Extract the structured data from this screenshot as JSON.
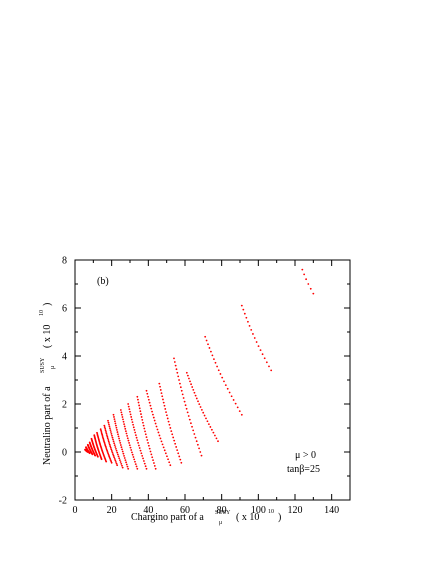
{
  "chart_data": {
    "type": "scatter",
    "panel_label": "(b)",
    "annotations": [
      "μ > 0",
      "tanβ=25"
    ],
    "xlabel": {
      "main": "Chargino part of a",
      "sub": "μ",
      "sup": "SUSY",
      "unit": "( x 10",
      "unit_exp": "10",
      "unit_close": ")"
    },
    "ylabel": {
      "main": "Neutralino part of a",
      "sub": "μ",
      "sup": "SUSY",
      "unit": "( x 10",
      "unit_exp": "10",
      "unit_close": ")"
    },
    "xlim": [
      0,
      150
    ],
    "ylim": [
      -2,
      8
    ],
    "xticks": [
      "0",
      "20",
      "40",
      "60",
      "80",
      "100",
      "120",
      "140"
    ],
    "yticks": [
      "-2",
      "0",
      "2",
      "4",
      "6",
      "8"
    ],
    "color": "#ff0000",
    "grid": false,
    "series": [
      {
        "top": [
          124,
          7.6
        ],
        "bottom": [
          130,
          6.6
        ],
        "n": 6
      },
      {
        "top": [
          91,
          6.1
        ],
        "bottom": [
          107,
          3.4
        ],
        "n": 17
      },
      {
        "top": [
          71,
          4.8
        ],
        "bottom": [
          91,
          1.55
        ],
        "n": 22
      },
      {
        "top": [
          61,
          3.3
        ],
        "bottom": [
          78,
          0.45
        ],
        "n": 25
      },
      {
        "top": [
          54,
          3.9
        ],
        "bottom": [
          69,
          -0.15
        ],
        "n": 28
      },
      {
        "top": [
          46,
          2.85
        ],
        "bottom": [
          58,
          -0.45
        ],
        "n": 26
      },
      {
        "top": [
          39,
          2.55
        ],
        "bottom": [
          52,
          -0.55
        ],
        "n": 26
      },
      {
        "top": [
          34,
          2.3
        ],
        "bottom": [
          44,
          -0.7
        ],
        "n": 26
      },
      {
        "top": [
          29,
          2.0
        ],
        "bottom": [
          39,
          -0.7
        ],
        "n": 26
      },
      {
        "top": [
          25,
          1.75
        ],
        "bottom": [
          34,
          -0.7
        ],
        "n": 26
      },
      {
        "top": [
          21,
          1.55
        ],
        "bottom": [
          29,
          -0.7
        ],
        "n": 26
      },
      {
        "top": [
          18,
          1.3
        ],
        "bottom": [
          26,
          -0.65
        ],
        "n": 26
      },
      {
        "top": [
          16,
          1.1
        ],
        "bottom": [
          23,
          -0.55
        ],
        "n": 26
      },
      {
        "top": [
          14,
          0.95
        ],
        "bottom": [
          20,
          -0.45
        ],
        "n": 26
      },
      {
        "top": [
          12,
          0.8
        ],
        "bottom": [
          17,
          -0.4
        ],
        "n": 26
      },
      {
        "top": [
          10.5,
          0.7
        ],
        "bottom": [
          14.5,
          -0.3
        ],
        "n": 26
      },
      {
        "top": [
          9,
          0.55
        ],
        "bottom": [
          12.5,
          -0.2
        ],
        "n": 26
      },
      {
        "top": [
          8,
          0.4
        ],
        "bottom": [
          11,
          -0.15
        ],
        "n": 26
      },
      {
        "top": [
          7,
          0.3
        ],
        "bottom": [
          9.5,
          -0.1
        ],
        "n": 26
      },
      {
        "top": [
          6,
          0.2
        ],
        "bottom": [
          8,
          -0.05
        ],
        "n": 26
      },
      {
        "top": [
          5.5,
          0.1
        ],
        "bottom": [
          7,
          0.0
        ],
        "n": 26
      }
    ]
  }
}
